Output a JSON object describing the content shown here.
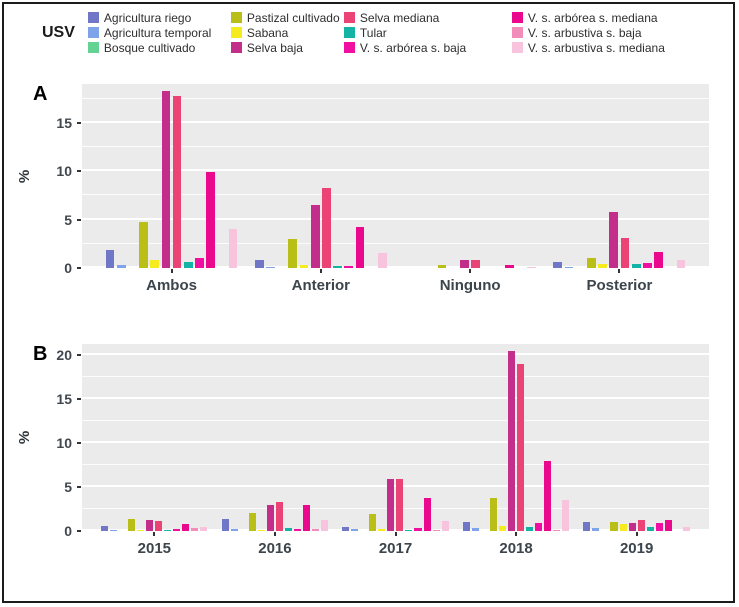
{
  "legend": {
    "title": "USV",
    "columns": [
      [
        {
          "label": "Agricultura riego",
          "color": "#6F77C6"
        },
        {
          "label": "Agricultura temporal",
          "color": "#7FA3E9"
        },
        {
          "label": "Bosque cultivado",
          "color": "#63D292"
        }
      ],
      [
        {
          "label": "Pastizal cultivado",
          "color": "#B9BF16"
        },
        {
          "label": "Sabana",
          "color": "#F6EB1F"
        },
        {
          "label": "Selva baja",
          "color": "#C32E8A"
        }
      ],
      [
        {
          "label": "Selva mediana",
          "color": "#EC4377"
        },
        {
          "label": "Tular",
          "color": "#14B3A6"
        },
        {
          "label": "V. s. arbórea s. baja",
          "color": "#F00FA0"
        }
      ],
      [
        {
          "label": "V. s. arbórea s. mediana",
          "color": "#EA098D"
        },
        {
          "label": "V. s. arbustiva s. baja",
          "color": "#F28CB9"
        },
        {
          "label": "V. s. arbustiva s. mediana",
          "color": "#F8C3DC"
        }
      ]
    ]
  },
  "chart_data": [
    {
      "type": "bar",
      "panel_label": "A",
      "title": "",
      "xlabel": "",
      "ylabel": "%",
      "categories": [
        "Ambos",
        "Anterior",
        "Ninguno",
        "Posterior"
      ],
      "y_ticks": [
        0,
        5,
        10,
        15
      ],
      "ylim": [
        0,
        19
      ],
      "grid": true,
      "legend_position": "top",
      "series": [
        {
          "name": "Agricultura riego",
          "color": "#6F77C6",
          "values": [
            1.9,
            0.8,
            0,
            0.6
          ]
        },
        {
          "name": "Agricultura temporal",
          "color": "#7FA3E9",
          "values": [
            0.35,
            0.1,
            0,
            0.15
          ]
        },
        {
          "name": "Bosque cultivado",
          "color": "#63D292",
          "values": [
            0,
            0,
            0,
            0
          ]
        },
        {
          "name": "Pastizal cultivado",
          "color": "#B9BF16",
          "values": [
            4.8,
            3.0,
            0.3,
            1.0
          ]
        },
        {
          "name": "Sabana",
          "color": "#F6EB1F",
          "values": [
            0.8,
            0.35,
            0,
            0.4
          ]
        },
        {
          "name": "Selva baja",
          "color": "#C32E8A",
          "values": [
            18.3,
            6.5,
            0.8,
            5.8
          ]
        },
        {
          "name": "Selva mediana",
          "color": "#EC4377",
          "values": [
            17.8,
            8.3,
            0.8,
            3.1
          ]
        },
        {
          "name": "Tular",
          "color": "#14B3A6",
          "values": [
            0.6,
            0.2,
            0,
            0.4
          ]
        },
        {
          "name": "V. s. arbórea s. baja",
          "color": "#F00FA0",
          "values": [
            1.0,
            0.2,
            0,
            0.5
          ]
        },
        {
          "name": "V. s. arbórea s. mediana",
          "color": "#EA098D",
          "values": [
            9.9,
            4.2,
            0.35,
            1.7
          ]
        },
        {
          "name": "V. s. arbustiva s. baja",
          "color": "#F28CB9",
          "values": [
            0,
            0,
            0,
            0
          ]
        },
        {
          "name": "V. s. arbustiva s. mediana",
          "color": "#F8C3DC",
          "values": [
            4.0,
            1.6,
            0.1,
            0.8
          ]
        }
      ]
    },
    {
      "type": "bar",
      "panel_label": "B",
      "title": "",
      "xlabel": "",
      "ylabel": "%",
      "categories": [
        "2015",
        "2016",
        "2017",
        "2018",
        "2019"
      ],
      "y_ticks": [
        0,
        5,
        10,
        15,
        20
      ],
      "ylim": [
        0,
        21.3
      ],
      "grid": true,
      "legend_position": "top",
      "series": [
        {
          "name": "Agricultura riego",
          "color": "#6F77C6",
          "values": [
            0.6,
            1.4,
            0.5,
            1.0,
            1.0
          ]
        },
        {
          "name": "Agricultura temporal",
          "color": "#7FA3E9",
          "values": [
            0.15,
            0.25,
            0.2,
            0.35,
            0.3
          ]
        },
        {
          "name": "Bosque cultivado",
          "color": "#63D292",
          "values": [
            0,
            0,
            0,
            0,
            0
          ]
        },
        {
          "name": "Pastizal cultivado",
          "color": "#B9BF16",
          "values": [
            1.4,
            2.1,
            1.9,
            3.8,
            1.0
          ]
        },
        {
          "name": "Sabana",
          "color": "#F6EB1F",
          "values": [
            0.15,
            0.15,
            0.2,
            0.6,
            0.8
          ]
        },
        {
          "name": "Selva baja",
          "color": "#C32E8A",
          "values": [
            1.3,
            3.0,
            5.9,
            20.5,
            0.9
          ]
        },
        {
          "name": "Selva mediana",
          "color": "#EC4377",
          "values": [
            1.1,
            3.3,
            5.9,
            19.0,
            1.2
          ]
        },
        {
          "name": "Tular",
          "color": "#14B3A6",
          "values": [
            0.15,
            0.35,
            0.15,
            0.5,
            0.5
          ]
        },
        {
          "name": "V. s. arbórea s. baja",
          "color": "#F00FA0",
          "values": [
            0.2,
            0.2,
            0.3,
            0.9,
            0.9
          ]
        },
        {
          "name": "V. s. arbórea s. mediana",
          "color": "#EA098D",
          "values": [
            0.8,
            2.9,
            3.8,
            8.0,
            1.3
          ]
        },
        {
          "name": "V. s. arbustiva s. baja",
          "color": "#F28CB9",
          "values": [
            0.3,
            0.2,
            0.15,
            0.1,
            0
          ]
        },
        {
          "name": "V. s. arbustiva s. mediana",
          "color": "#F8C3DC",
          "values": [
            0.5,
            1.2,
            1.1,
            3.5,
            0.4
          ]
        }
      ]
    }
  ]
}
